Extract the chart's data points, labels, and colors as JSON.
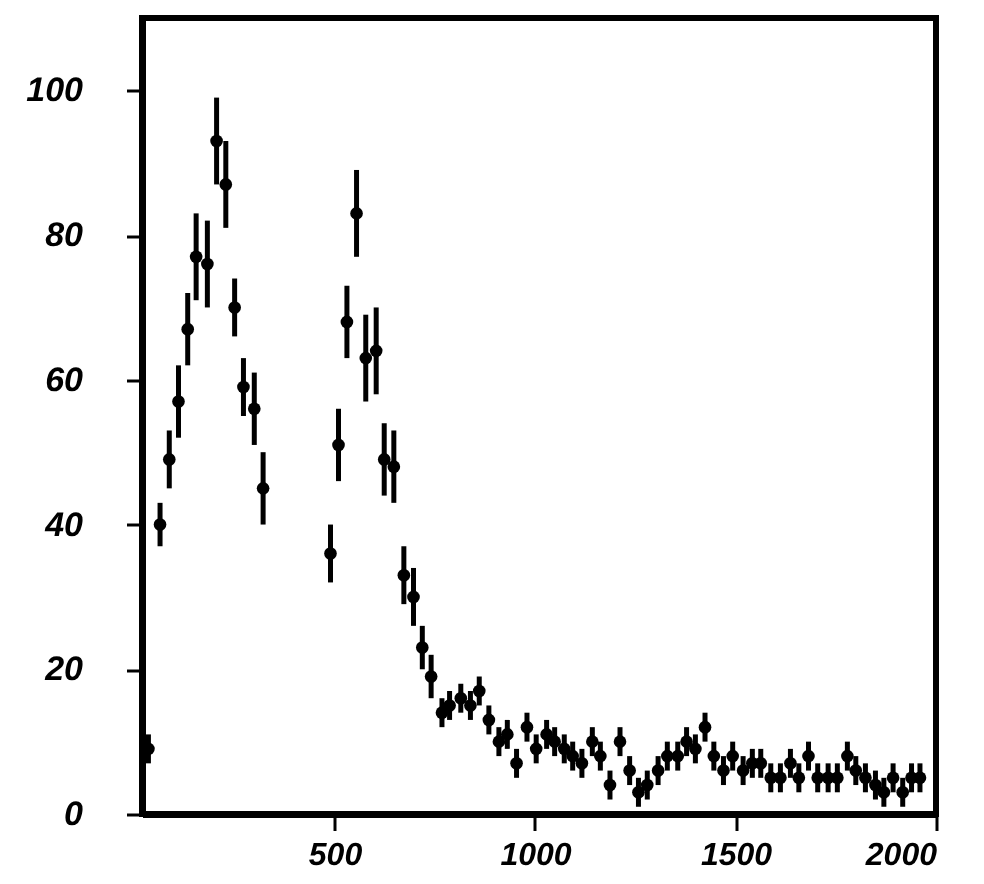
{
  "chart_data": {
    "type": "scatter",
    "marker": "circle",
    "xlim": [
      20,
      2000
    ],
    "ylim": [
      0,
      110
    ],
    "xticks": [
      500,
      1000,
      1500,
      2000
    ],
    "yticks": [
      0,
      20,
      40,
      60,
      80,
      100
    ],
    "grid": false,
    "x": [
      36,
      65,
      88,
      111,
      134,
      155,
      183,
      206,
      229,
      251,
      273,
      300,
      322,
      490,
      510,
      531,
      555,
      578,
      604,
      624,
      648,
      673,
      697,
      719,
      741,
      768,
      787,
      815,
      839,
      861,
      885,
      910,
      931,
      954,
      980,
      1003,
      1029,
      1049,
      1073,
      1094,
      1117,
      1143,
      1163,
      1187,
      1212,
      1236,
      1258,
      1280,
      1307,
      1330,
      1356,
      1378,
      1400,
      1424,
      1446,
      1470,
      1493,
      1519,
      1542,
      1563,
      1588,
      1612,
      1637,
      1658,
      1682,
      1705,
      1731,
      1754,
      1779,
      1800,
      1824,
      1849,
      1870,
      1893,
      1917,
      1939,
      1960
    ],
    "series": [
      {
        "color": "#000000",
        "values": [
          9,
          40,
          49,
          57,
          67,
          77,
          76,
          93,
          87,
          70,
          59,
          56,
          45,
          36,
          51,
          68,
          83,
          63,
          64,
          49,
          48,
          33,
          30,
          23,
          19,
          14,
          15,
          16,
          15,
          17,
          13,
          10,
          11,
          7,
          12,
          9,
          11,
          10,
          9,
          8,
          7,
          10,
          8,
          4,
          10,
          6,
          3,
          4,
          6,
          8,
          8,
          10,
          9,
          12,
          8,
          6,
          8,
          6,
          7,
          7,
          5,
          5,
          7,
          5,
          8,
          5,
          5,
          5,
          8,
          6,
          5,
          4,
          3,
          5,
          3,
          5,
          5
        ],
        "errors": [
          2,
          3,
          4,
          5,
          5,
          6,
          6,
          6,
          6,
          4,
          4,
          5,
          5,
          4,
          5,
          5,
          6,
          6,
          6,
          5,
          5,
          4,
          4,
          3,
          3,
          2,
          2,
          2,
          2,
          2,
          2,
          2,
          2,
          2,
          2,
          2,
          2,
          2,
          2,
          2,
          2,
          2,
          2,
          2,
          2,
          2,
          2,
          2,
          2,
          2,
          2,
          2,
          2,
          2,
          2,
          2,
          2,
          2,
          2,
          2,
          2,
          2,
          2,
          2,
          2,
          2,
          2,
          2,
          2,
          2,
          2,
          2,
          2,
          2,
          2,
          2,
          2
        ]
      }
    ]
  }
}
